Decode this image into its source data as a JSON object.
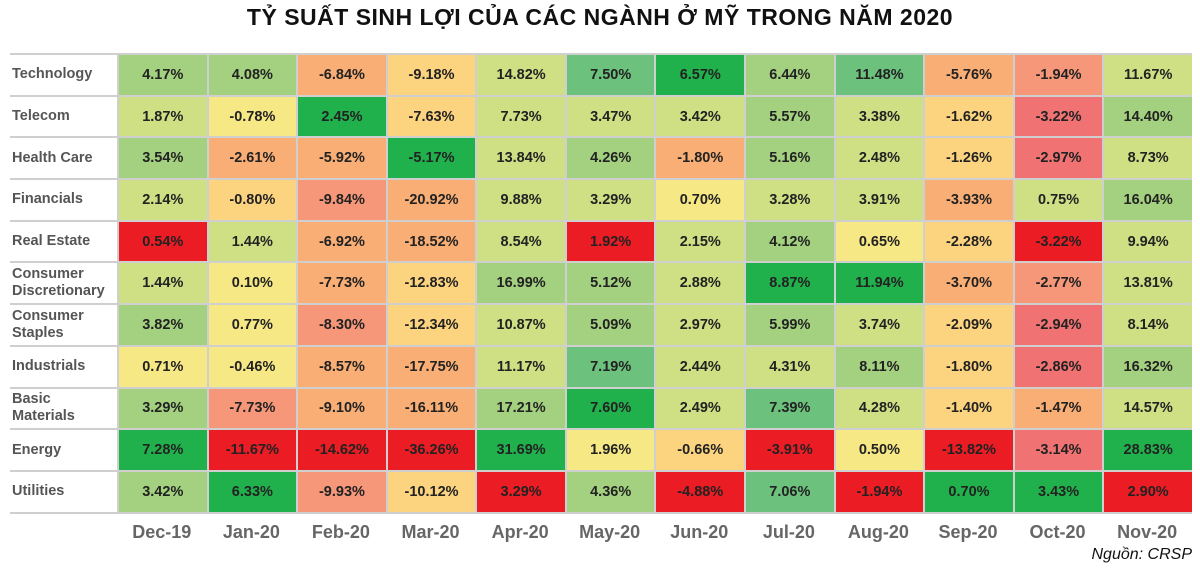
{
  "chart_data": {
    "type": "heatmap",
    "title": "TỶ SUẤT SINH LỢI CỦA CÁC NGÀNH Ở MỸ TRONG NĂM 2020",
    "source": "Nguồn: CRSP",
    "columns": [
      "Dec-19",
      "Jan-20",
      "Feb-20",
      "Mar-20",
      "Apr-20",
      "May-20",
      "Jun-20",
      "Jul-20",
      "Aug-20",
      "Sep-20",
      "Oct-20",
      "Nov-20"
    ],
    "palette": {
      "G": "#21b14c",
      "g1": "#6cc17c",
      "g2": "#a3d17f",
      "g3": "#cfdf84",
      "y": "#f7e886",
      "o1": "#fcd480",
      "o2": "#f9ae75",
      "o3": "#f6977a",
      "rr": "#f07272",
      "R": "#ec1c24"
    },
    "rows": [
      {
        "label": "Technology",
        "values": [
          "4.17%",
          "4.08%",
          "-6.84%",
          "-9.18%",
          "14.82%",
          "7.50%",
          "6.57%",
          "6.44%",
          "11.48%",
          "-5.76%",
          "-1.94%",
          "11.67%"
        ],
        "colors": [
          "g2",
          "g2",
          "o2",
          "o1",
          "g3",
          "g1",
          "G",
          "g2",
          "g1",
          "o2",
          "o3",
          "g3"
        ]
      },
      {
        "label": "Telecom",
        "values": [
          "1.87%",
          "-0.78%",
          "2.45%",
          "-7.63%",
          "7.73%",
          "3.47%",
          "3.42%",
          "5.57%",
          "3.38%",
          "-1.62%",
          "-3.22%",
          "14.40%"
        ],
        "colors": [
          "g3",
          "y",
          "G",
          "o1",
          "g3",
          "g3",
          "g3",
          "g2",
          "g3",
          "o1",
          "rr",
          "g2"
        ]
      },
      {
        "label": "Health Care",
        "values": [
          "3.54%",
          "-2.61%",
          "-5.92%",
          "-5.17%",
          "13.84%",
          "4.26%",
          "-1.80%",
          "5.16%",
          "2.48%",
          "-1.26%",
          "-2.97%",
          "8.73%"
        ],
        "colors": [
          "g2",
          "o2",
          "o2",
          "G",
          "g3",
          "g2",
          "o2",
          "g2",
          "g3",
          "o1",
          "rr",
          "g3"
        ]
      },
      {
        "label": "Financials",
        "values": [
          "2.14%",
          "-0.80%",
          "-9.84%",
          "-20.92%",
          "9.88%",
          "3.29%",
          "0.70%",
          "3.28%",
          "3.91%",
          "-3.93%",
          "0.75%",
          "16.04%"
        ],
        "colors": [
          "g3",
          "o1",
          "o3",
          "o2",
          "g3",
          "g3",
          "y",
          "g3",
          "g3",
          "o2",
          "g3",
          "g2"
        ]
      },
      {
        "label": "Real Estate",
        "values": [
          "0.54%",
          "1.44%",
          "-6.92%",
          "-18.52%",
          "8.54%",
          "1.92%",
          "2.15%",
          "4.12%",
          "0.65%",
          "-2.28%",
          "-3.22%",
          "9.94%"
        ],
        "colors": [
          "R",
          "g3",
          "o2",
          "o2",
          "g3",
          "R",
          "g3",
          "g2",
          "y",
          "o1",
          "R",
          "g3"
        ]
      },
      {
        "label": "Consumer Discretionary",
        "values": [
          "1.44%",
          "0.10%",
          "-7.73%",
          "-12.83%",
          "16.99%",
          "5.12%",
          "2.88%",
          "8.87%",
          "11.94%",
          "-3.70%",
          "-2.77%",
          "13.81%"
        ],
        "colors": [
          "g3",
          "y",
          "o2",
          "o1",
          "g2",
          "g2",
          "g3",
          "G",
          "G",
          "o2",
          "o3",
          "g3"
        ]
      },
      {
        "label": "Consumer Staples",
        "values": [
          "3.82%",
          "0.77%",
          "-8.30%",
          "-12.34%",
          "10.87%",
          "5.09%",
          "2.97%",
          "5.99%",
          "3.74%",
          "-2.09%",
          "-2.94%",
          "8.14%"
        ],
        "colors": [
          "g2",
          "y",
          "o3",
          "o1",
          "g3",
          "g2",
          "g3",
          "g2",
          "g3",
          "o1",
          "rr",
          "g3"
        ]
      },
      {
        "label": "Industrials",
        "values": [
          "0.71%",
          "-0.46%",
          "-8.57%",
          "-17.75%",
          "11.17%",
          "7.19%",
          "2.44%",
          "4.31%",
          "8.11%",
          "-1.80%",
          "-2.86%",
          "16.32%"
        ],
        "colors": [
          "y",
          "y",
          "o2",
          "o2",
          "g3",
          "g1",
          "g3",
          "g3",
          "g2",
          "o1",
          "rr",
          "g2"
        ]
      },
      {
        "label": "Basic Materials",
        "values": [
          "3.29%",
          "-7.73%",
          "-9.10%",
          "-16.11%",
          "17.21%",
          "7.60%",
          "2.49%",
          "7.39%",
          "4.28%",
          "-1.40%",
          "-1.47%",
          "14.57%"
        ],
        "colors": [
          "g2",
          "o3",
          "o2",
          "o2",
          "g2",
          "G",
          "g3",
          "g1",
          "g3",
          "o1",
          "o2",
          "g3"
        ]
      },
      {
        "label": "Energy",
        "values": [
          "7.28%",
          "-11.67%",
          "-14.62%",
          "-36.26%",
          "31.69%",
          "1.96%",
          "-0.66%",
          "-3.91%",
          "0.50%",
          "-13.82%",
          "-3.14%",
          "28.83%"
        ],
        "colors": [
          "G",
          "R",
          "R",
          "R",
          "G",
          "y",
          "o1",
          "R",
          "y",
          "R",
          "rr",
          "G"
        ]
      },
      {
        "label": "Utilities",
        "values": [
          "3.42%",
          "6.33%",
          "-9.93%",
          "-10.12%",
          "3.29%",
          "4.36%",
          "-4.88%",
          "7.06%",
          "-1.94%",
          "0.70%",
          "3.43%",
          "2.90%"
        ],
        "colors": [
          "g2",
          "G",
          "o3",
          "o1",
          "R",
          "g2",
          "R",
          "g1",
          "R",
          "G",
          "G",
          "R"
        ]
      }
    ]
  }
}
